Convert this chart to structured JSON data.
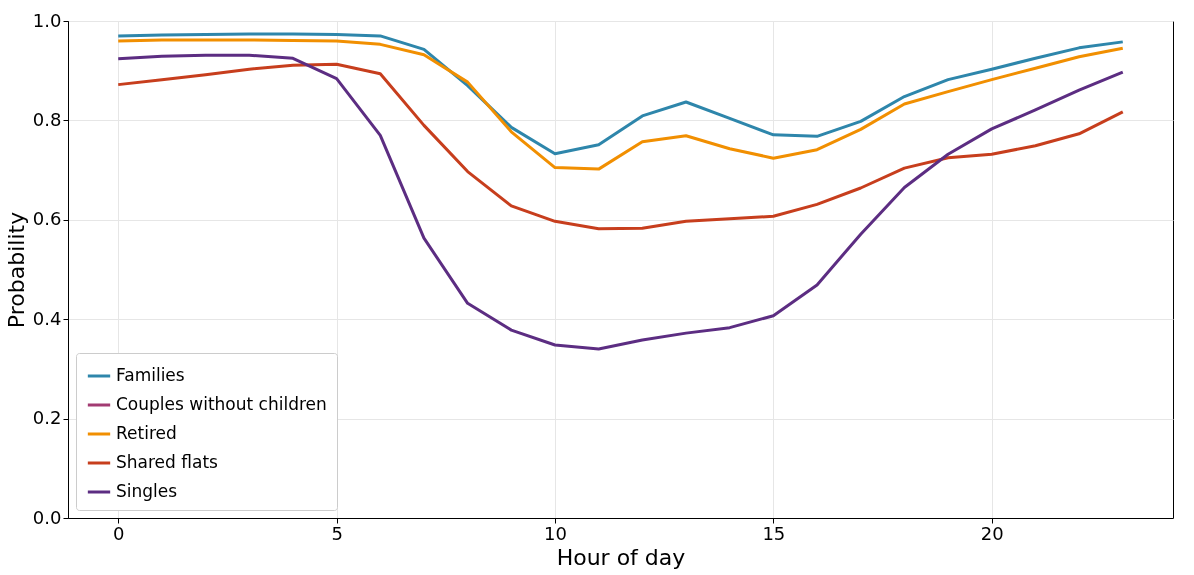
{
  "chart_data": {
    "type": "line",
    "xlabel": "Hour of day",
    "ylabel": "Probability",
    "x": [
      0,
      1,
      2,
      3,
      4,
      5,
      6,
      7,
      8,
      9,
      10,
      11,
      12,
      13,
      14,
      15,
      16,
      17,
      18,
      19,
      20,
      21,
      22,
      23
    ],
    "series": [
      {
        "name": "Families",
        "color": "#2e86ab",
        "values": [
          0.97,
          0.972,
          0.973,
          0.974,
          0.974,
          0.973,
          0.97,
          0.943,
          0.87,
          0.786,
          0.733,
          0.751,
          0.809,
          0.837,
          0.804,
          0.771,
          0.768,
          0.798,
          0.848,
          0.882,
          0.903,
          0.925,
          0.946,
          0.958
        ]
      },
      {
        "name": "Couples without children",
        "color": "#a23b72",
        "values": [
          null,
          null,
          null,
          null,
          null,
          null,
          null,
          null,
          null,
          null,
          null,
          null,
          null,
          null,
          null,
          null,
          null,
          null,
          null,
          null,
          null,
          null,
          null,
          null
        ]
      },
      {
        "name": "Retired",
        "color": "#f18f01",
        "values": [
          0.96,
          0.962,
          0.962,
          0.962,
          0.961,
          0.96,
          0.953,
          0.932,
          0.877,
          0.777,
          0.705,
          0.702,
          0.757,
          0.769,
          0.743,
          0.724,
          0.741,
          0.782,
          0.833,
          0.858,
          0.882,
          0.905,
          0.928,
          0.945
        ]
      },
      {
        "name": "Shared flats",
        "color": "#c73e1d",
        "values": [
          0.872,
          0.882,
          0.892,
          0.903,
          0.911,
          0.913,
          0.894,
          0.79,
          0.697,
          0.628,
          0.597,
          0.582,
          0.583,
          0.597,
          0.602,
          0.607,
          0.631,
          0.664,
          0.704,
          0.725,
          0.732,
          0.749,
          0.773,
          0.817
        ]
      },
      {
        "name": "Singles",
        "color": "#5c2d82",
        "values": [
          0.924,
          0.929,
          0.931,
          0.931,
          0.925,
          0.884,
          0.77,
          0.563,
          0.432,
          0.378,
          0.348,
          0.34,
          0.358,
          0.372,
          0.383,
          0.407,
          0.469,
          0.571,
          0.665,
          0.732,
          0.783,
          0.821,
          0.861,
          0.897
        ]
      }
    ],
    "xlim": [
      -1.15,
      24.15
    ],
    "xticks": [
      0,
      5,
      10,
      15,
      20
    ],
    "ylim": [
      0,
      1.0
    ],
    "yticks": [
      {
        "value": 0,
        "label": "0.0"
      },
      {
        "value": 0.2,
        "label": "0.2"
      },
      {
        "value": 0.4,
        "label": "0.4"
      },
      {
        "value": 0.6,
        "label": "0.6"
      },
      {
        "value": 0.8,
        "label": "0.8"
      },
      {
        "value": 1.0,
        "label": "1.0"
      }
    ],
    "grid": true,
    "legend": "bottom left",
    "marker": "none",
    "line_style": "solid"
  }
}
